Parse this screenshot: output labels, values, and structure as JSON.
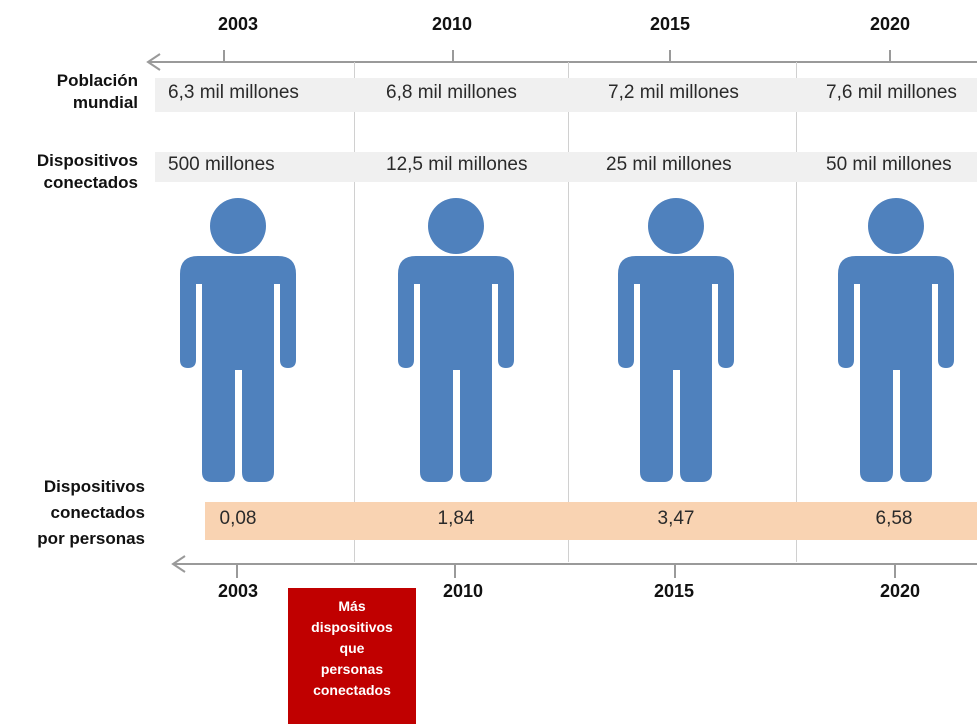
{
  "years_top": [
    "2003",
    "2010",
    "2015",
    "2020"
  ],
  "years_bottom": [
    "2003",
    "2010",
    "2015",
    "2020"
  ],
  "rows": {
    "population_label": [
      "Población",
      "mundial"
    ],
    "devices_label": [
      "Dispositivos",
      "conectados"
    ],
    "ratio_label": [
      "Dispositivos",
      "conectados",
      "por personas"
    ]
  },
  "population": [
    "6,3 mil millones",
    "6,8 mil millones",
    "7,2 mil millones",
    "7,6 mil millones"
  ],
  "devices": [
    "500 millones",
    "12,5 mil millones",
    "25 mil millones",
    "50 mil millones"
  ],
  "ratio": [
    "0,08",
    "1,84",
    "3,47",
    "6,58"
  ],
  "note": [
    "Más",
    "dispositivos",
    "que",
    "personas",
    "conectados"
  ],
  "icons": [
    "person-icon",
    "person-icon",
    "person-icon",
    "person-icon"
  ],
  "colors": {
    "person": "#4f81bd",
    "ratio_band": "#f9d3b2",
    "note_box": "#c00000",
    "arrow": "#9a9a9a"
  }
}
